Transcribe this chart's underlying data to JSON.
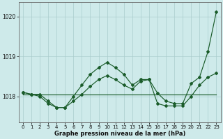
{
  "xlabel": "Graphe pression niveau de la mer (hPa)",
  "background_color": "#ceeaea",
  "line_color": "#1a5c2a",
  "grid_color": "#aacccc",
  "hours": [
    0,
    1,
    2,
    3,
    4,
    5,
    6,
    7,
    8,
    9,
    10,
    11,
    12,
    13,
    14,
    15,
    16,
    17,
    18,
    19,
    20,
    21,
    22,
    23
  ],
  "line1": [
    1018.1,
    1018.05,
    1018.0,
    1017.82,
    1017.72,
    1017.72,
    1017.88,
    1018.05,
    1018.25,
    1018.42,
    1018.52,
    1018.42,
    1018.28,
    1018.18,
    1018.38,
    1018.42,
    1017.82,
    1017.76,
    1017.76,
    1017.76,
    1018.0,
    1018.28,
    1018.48,
    1018.58
  ],
  "line2_val": 1018.05,
  "line3": [
    1018.1,
    1018.05,
    1018.05,
    1017.88,
    1017.72,
    1017.72,
    1018.0,
    1018.28,
    1018.55,
    1018.72,
    1018.85,
    1018.72,
    1018.55,
    1018.28,
    1018.42,
    1018.42,
    1018.08,
    1017.88,
    1017.82,
    1017.82,
    1018.32,
    1018.48,
    1019.12,
    1020.12
  ],
  "ylim_min": 1017.35,
  "ylim_max": 1020.35,
  "yticks": [
    1018,
    1019,
    1020
  ],
  "ytick_labels": [
    "1018",
    "1019",
    "1020"
  ],
  "xtick_fontsize": 5.0,
  "ytick_fontsize": 5.5,
  "xlabel_fontsize": 6.0,
  "marker": "D",
  "marker_size": 2.0,
  "linewidth": 0.85
}
